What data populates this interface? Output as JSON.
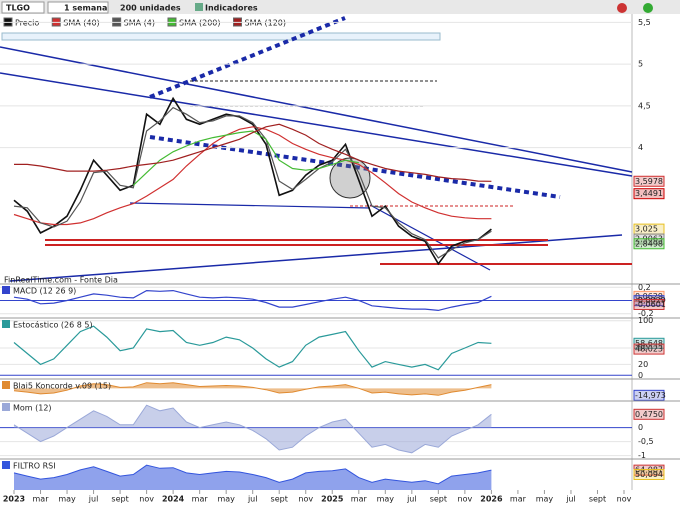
{
  "toolbar": {
    "ticker": "TLGO",
    "period": "1 semana",
    "units": "200 unidades",
    "indicators": "Indicadores"
  },
  "watermark": "FinRealTime.com - Fonte Dia",
  "chart_data": [
    {
      "type": "line",
      "categories": [
        "2023",
        null,
        "mar",
        null,
        "may",
        null,
        "jul",
        null,
        "sept",
        null,
        "nov",
        null,
        "2024",
        null,
        "mar",
        null,
        "may",
        null,
        "jul",
        null,
        "sept",
        null,
        "nov",
        null,
        "2025",
        null,
        "mar",
        null,
        "may",
        null,
        "jul",
        null,
        "sept",
        null,
        "nov",
        null,
        "2026",
        null,
        "mar",
        null,
        "may",
        null,
        "jul",
        null,
        "sept",
        null,
        "nov"
      ],
      "ylim": [
        2.38,
        5.6
      ],
      "yticks": [
        {
          "value": 4,
          "label": "4"
        },
        {
          "value": 4.5,
          "label": "4,5"
        },
        {
          "value": 5,
          "label": "5"
        },
        {
          "value": 5.5,
          "label": "5,5"
        }
      ],
      "series": [
        {
          "name": "Precio",
          "color": "#111111",
          "values": [
            3.37,
            3.24,
            2.98,
            3.06,
            3.18,
            3.49,
            3.85,
            3.67,
            3.49,
            3.55,
            4.4,
            4.28,
            4.59,
            4.34,
            4.28,
            4.34,
            4.4,
            4.37,
            4.28,
            4.04,
            3.43,
            3.49,
            3.67,
            3.79,
            3.85,
            4.04,
            3.61,
            3.18,
            3.3,
            3.06,
            2.94,
            2.88,
            2.61,
            2.82,
            2.88,
            2.9,
            3.025,
            null,
            null,
            null,
            null,
            null,
            null,
            null,
            null,
            null,
            null
          ]
        },
        {
          "name": "SMA (40)",
          "color": "#d03030",
          "values": [
            3.2,
            3.15,
            3.1,
            3.08,
            3.08,
            3.1,
            3.15,
            3.22,
            3.28,
            3.33,
            3.42,
            3.52,
            3.62,
            3.78,
            3.92,
            4.05,
            4.15,
            4.22,
            4.25,
            4.22,
            4.15,
            4.05,
            3.98,
            3.92,
            3.88,
            3.85,
            3.8,
            3.7,
            3.58,
            3.45,
            3.35,
            3.28,
            3.22,
            3.18,
            3.16,
            3.15,
            3.15,
            null,
            null,
            null,
            null,
            null,
            null,
            null,
            null,
            null,
            null
          ]
        },
        {
          "name": "SMA (4)",
          "color": "#555555",
          "values": [
            3.3,
            3.28,
            3.1,
            3.05,
            3.12,
            3.35,
            3.7,
            3.72,
            3.55,
            3.52,
            4.2,
            4.32,
            4.48,
            4.4,
            4.3,
            4.32,
            4.38,
            4.38,
            4.3,
            4.1,
            3.6,
            3.5,
            3.62,
            3.75,
            3.83,
            3.98,
            3.7,
            3.3,
            3.28,
            3.1,
            2.97,
            2.9,
            2.68,
            2.78,
            2.86,
            2.9,
            3.0,
            null,
            null,
            null,
            null,
            null,
            null,
            null,
            null,
            null,
            null
          ]
        },
        {
          "name": "SMA (200)",
          "color": "#44bb33",
          "values": [
            null,
            null,
            null,
            null,
            null,
            null,
            null,
            null,
            null,
            3.55,
            3.7,
            3.85,
            3.95,
            4.02,
            4.08,
            4.12,
            4.15,
            4.18,
            4.2,
            4.1,
            3.85,
            3.75,
            3.73,
            3.75,
            3.8,
            3.85,
            3.82,
            null,
            null,
            null,
            null,
            null,
            null,
            null,
            null,
            null,
            null,
            null,
            null,
            null,
            null,
            null,
            null,
            null,
            null,
            null,
            null
          ]
        },
        {
          "name": "SMA (120)",
          "color": "#a02020",
          "values": [
            3.8,
            3.8,
            3.78,
            3.75,
            3.72,
            3.72,
            3.72,
            3.73,
            3.75,
            3.78,
            3.8,
            3.82,
            3.85,
            3.9,
            3.95,
            4.0,
            4.05,
            4.1,
            4.18,
            4.25,
            4.28,
            4.22,
            4.15,
            4.05,
            3.98,
            3.92,
            3.85,
            3.8,
            3.75,
            3.72,
            3.7,
            3.68,
            3.65,
            3.63,
            3.62,
            3.6,
            3.5978,
            null,
            null,
            null,
            null,
            null,
            null,
            null,
            null,
            null,
            null
          ]
        }
      ],
      "annotations": [
        {
          "value": 3.5978,
          "label": "3,5978",
          "color": "#d03030"
        },
        {
          "value": 3.4491,
          "label": "3,4491",
          "color": "#cc0000"
        },
        {
          "value": 3.025,
          "label": "3,025",
          "color": "#e8c020"
        },
        {
          "value": 2.9063,
          "label": "2,9063",
          "color": "#888888"
        },
        {
          "value": 2.8498,
          "label": "2,8498",
          "color": "#44bb33"
        }
      ]
    },
    {
      "type": "line",
      "title": "MACD (12 26 9)",
      "ylim": [
        -0.25,
        0.25
      ],
      "yticks": [
        {
          "value": -0.2,
          "label": "-0,2"
        },
        0,
        {
          "value": 0.2,
          "label": "0,2"
        }
      ],
      "series": [
        {
          "color": "#3344cc",
          "values": [
            0.05,
            0.02,
            -0.05,
            -0.04,
            0.0,
            0.05,
            0.1,
            0.08,
            0.05,
            0.04,
            0.15,
            0.14,
            0.15,
            0.1,
            0.05,
            0.04,
            0.05,
            0.04,
            0.02,
            -0.03,
            -0.1,
            -0.1,
            -0.06,
            -0.02,
            0.02,
            0.05,
            0.0,
            -0.08,
            -0.1,
            -0.12,
            -0.13,
            -0.13,
            -0.15,
            -0.1,
            -0.06,
            -0.03,
            0.0629,
            null,
            null,
            null,
            null,
            null,
            null,
            null,
            null,
            null,
            null
          ]
        }
      ],
      "annotations": [
        {
          "value": 0.0629,
          "label": "0,0629",
          "color": "#ff9966"
        },
        {
          "value": -0.0029,
          "label": "-0,0029",
          "color": "#3344cc"
        },
        {
          "value": -0.0601,
          "label": "-0,0601",
          "color": "#cc3333"
        }
      ]
    },
    {
      "type": "line",
      "title": "Estocástico (26 8 5)",
      "ylim": [
        -5,
        105
      ],
      "yticks": [
        0,
        20,
        50,
        100
      ],
      "series": [
        {
          "color": "#2a9a9a",
          "values": [
            60,
            40,
            20,
            30,
            55,
            80,
            90,
            70,
            45,
            50,
            85,
            80,
            82,
            60,
            55,
            60,
            70,
            65,
            50,
            30,
            15,
            25,
            55,
            70,
            75,
            80,
            45,
            15,
            25,
            20,
            15,
            20,
            10,
            40,
            50,
            60,
            58.648,
            null,
            null,
            null,
            null,
            null,
            null,
            null,
            null,
            null,
            null
          ]
        }
      ],
      "annotations": [
        {
          "value": 58.648,
          "label": "58,648",
          "color": "#2a9a9a"
        },
        {
          "value": 48.023,
          "label": "48,023",
          "color": "#cc3333"
        }
      ]
    },
    {
      "type": "area",
      "title": "Blai5 Koncorde v.09 (15)",
      "ylim": [
        -25,
        20
      ],
      "yticks": [],
      "series": [
        {
          "color": "#e08a30",
          "values": [
            -5,
            -8,
            -12,
            -10,
            -4,
            5,
            10,
            8,
            2,
            3,
            12,
            10,
            12,
            8,
            4,
            5,
            6,
            5,
            2,
            -3,
            -10,
            -8,
            -2,
            3,
            5,
            8,
            0,
            -10,
            -8,
            -12,
            -14,
            -12,
            -15,
            -8,
            -4,
            2,
            8,
            null,
            null,
            null,
            null,
            null,
            null,
            null,
            null,
            null,
            null
          ]
        }
      ],
      "annotations": [
        {
          "value": -14.973,
          "label": "-14,973",
          "color": "#3344cc"
        }
      ]
    },
    {
      "type": "area",
      "title": "Mom (12)",
      "ylim": [
        -1.05,
        0.95
      ],
      "yticks": [
        {
          "value": -1,
          "label": "-1"
        },
        {
          "value": -0.5,
          "label": "-0,5"
        },
        0
      ],
      "series": [
        {
          "color": "#9aa8d8",
          "values": [
            0.1,
            -0.2,
            -0.5,
            -0.3,
            0.0,
            0.3,
            0.6,
            0.4,
            0.1,
            0.1,
            0.8,
            0.6,
            0.7,
            0.2,
            0.0,
            0.1,
            0.2,
            0.1,
            -0.1,
            -0.4,
            -0.8,
            -0.7,
            -0.3,
            0.0,
            0.2,
            0.3,
            -0.2,
            -0.7,
            -0.6,
            -0.8,
            -0.9,
            -0.6,
            -0.7,
            -0.3,
            -0.1,
            0.1,
            0.475,
            null,
            null,
            null,
            null,
            null,
            null,
            null,
            null,
            null,
            null
          ]
        }
      ],
      "annotations": [
        {
          "value": 0.475,
          "label": "0,4750",
          "color": "#cc3333"
        }
      ]
    },
    {
      "type": "area",
      "title": "FILTRO RSI",
      "ylim": [
        0,
        100
      ],
      "yticks": [],
      "series": [
        {
          "color": "#3355dd",
          "values": [
            55,
            45,
            35,
            40,
            50,
            65,
            75,
            60,
            45,
            50,
            80,
            70,
            72,
            55,
            50,
            55,
            60,
            58,
            50,
            40,
            25,
            35,
            55,
            60,
            62,
            68,
            40,
            25,
            35,
            30,
            25,
            30,
            20,
            45,
            50,
            55,
            64.087,
            null,
            null,
            null,
            null,
            null,
            null,
            null,
            null,
            null,
            null
          ]
        }
      ],
      "annotations": [
        {
          "value": 64.087,
          "label": "64,087",
          "color": "#cc3333"
        },
        {
          "value": 50.094,
          "label": "50,094",
          "color": "#e8c020"
        }
      ]
    }
  ]
}
